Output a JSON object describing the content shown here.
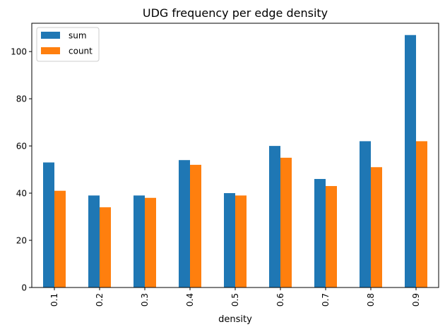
{
  "chart_data": {
    "type": "bar",
    "title": "UDG frequency per edge density",
    "xlabel": "density",
    "ylabel": "",
    "categories": [
      "0.1",
      "0.2",
      "0.3",
      "0.4",
      "0.5",
      "0.6",
      "0.7",
      "0.8",
      "0.9"
    ],
    "series": [
      {
        "name": "sum",
        "color": "#1f77b4",
        "values": [
          53,
          39,
          39,
          54,
          40,
          60,
          46,
          62,
          107
        ]
      },
      {
        "name": "count",
        "color": "#ff7f0e",
        "values": [
          41,
          34,
          38,
          52,
          39,
          55,
          43,
          51,
          62
        ]
      }
    ],
    "ylim": [
      0,
      112
    ],
    "yticks": [
      0,
      20,
      40,
      60,
      80,
      100
    ],
    "grid": false,
    "legend_position": "top-left"
  }
}
